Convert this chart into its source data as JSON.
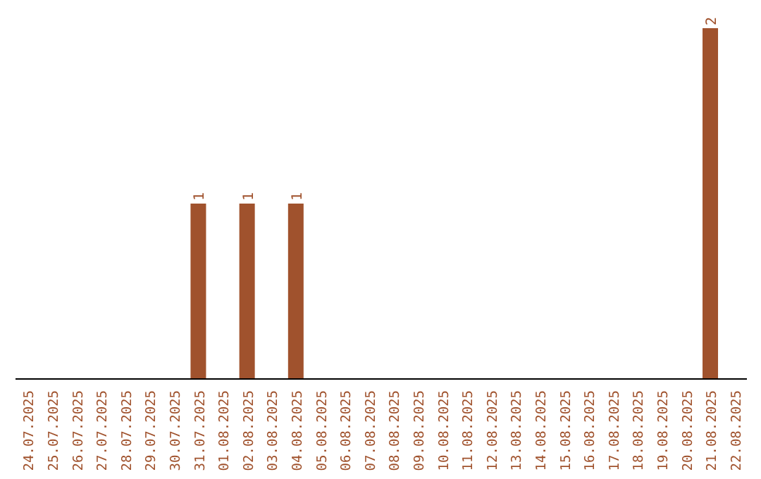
{
  "chart_data": {
    "type": "bar",
    "categories": [
      "24.07.2025",
      "25.07.2025",
      "26.07.2025",
      "27.07.2025",
      "28.07.2025",
      "29.07.2025",
      "30.07.2025",
      "31.07.2025",
      "01.08.2025",
      "02.08.2025",
      "03.08.2025",
      "04.08.2025",
      "05.08.2025",
      "06.08.2025",
      "07.08.2025",
      "08.08.2025",
      "09.08.2025",
      "10.08.2025",
      "11.08.2025",
      "12.08.2025",
      "13.08.2025",
      "14.08.2025",
      "15.08.2025",
      "16.08.2025",
      "17.08.2025",
      "18.08.2025",
      "19.08.2025",
      "20.08.2025",
      "21.08.2025",
      "22.08.2025"
    ],
    "values": [
      0,
      0,
      0,
      0,
      0,
      0,
      0,
      1,
      0,
      1,
      0,
      1,
      0,
      0,
      0,
      0,
      0,
      0,
      0,
      0,
      0,
      0,
      0,
      0,
      0,
      0,
      0,
      0,
      2,
      0
    ],
    "value_labels": [
      null,
      null,
      null,
      null,
      null,
      null,
      null,
      "1",
      null,
      "1",
      null,
      "1",
      null,
      null,
      null,
      null,
      null,
      null,
      null,
      null,
      null,
      null,
      null,
      null,
      null,
      null,
      null,
      null,
      "2",
      null
    ],
    "color": "#a0522d",
    "tick_labels": "x"
  }
}
